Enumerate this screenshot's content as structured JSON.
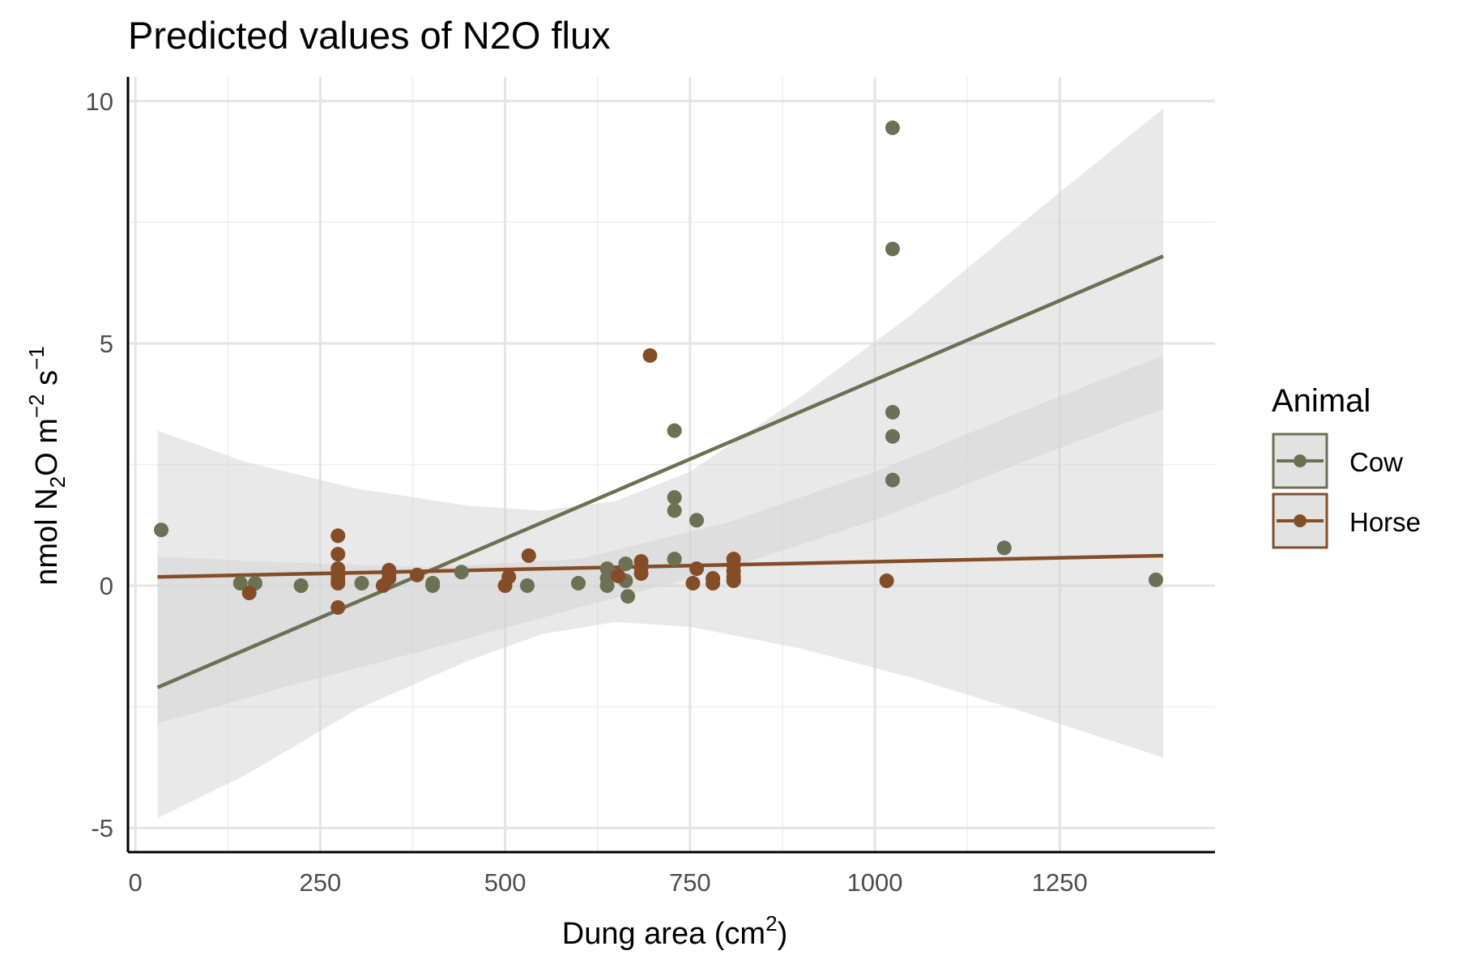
{
  "chart_data": {
    "type": "scatter",
    "title": "Predicted values of N2O flux",
    "xlabel": {
      "main": "Dung area (cm",
      "sup": "2",
      "close": ")"
    },
    "ylabel": {
      "a": "nmol N",
      "sub": "2",
      "b": "O m",
      "sup1": "−2",
      "c": " s",
      "sup2": "−1"
    },
    "xlim": [
      -10,
      1460
    ],
    "ylim": [
      -5.5,
      10.5
    ],
    "x_ticks": [
      0,
      250,
      500,
      750,
      1000,
      1250
    ],
    "x_tick_labels": [
      "0",
      "250",
      "500",
      "750",
      "1000",
      "1250"
    ],
    "y_ticks": [
      -5,
      0,
      5,
      10
    ],
    "y_tick_labels": [
      "-5",
      "0",
      "5",
      "10"
    ],
    "grid": true,
    "legend": {
      "title": "Animal",
      "position": "right"
    },
    "colors": {
      "cow": "#6b7152",
      "horse": "#844d28",
      "ribbon": "#d3d3d3"
    },
    "series": [
      {
        "name": "Cow",
        "color": "#6b7152",
        "points": [
          [
            35,
            1.15
          ],
          [
            142,
            0.05
          ],
          [
            162,
            0.05
          ],
          [
            224,
            0.0
          ],
          [
            306,
            0.05
          ],
          [
            402,
            0.05
          ],
          [
            402,
            0.0
          ],
          [
            441,
            0.28
          ],
          [
            530,
            0.0
          ],
          [
            599,
            0.05
          ],
          [
            638,
            0.35
          ],
          [
            638,
            0.15
          ],
          [
            638,
            0.0
          ],
          [
            663,
            0.45
          ],
          [
            663,
            0.1
          ],
          [
            666,
            -0.22
          ],
          [
            729,
            3.2
          ],
          [
            729,
            1.82
          ],
          [
            729,
            1.55
          ],
          [
            729,
            0.55
          ],
          [
            759,
            1.35
          ],
          [
            1024,
            9.45
          ],
          [
            1024,
            6.95
          ],
          [
            1024,
            3.58
          ],
          [
            1024,
            3.08
          ],
          [
            1024,
            2.18
          ],
          [
            1175,
            0.78
          ],
          [
            1380,
            0.12
          ]
        ],
        "fit": {
          "x": [
            30,
            1390
          ],
          "y": [
            -2.1,
            6.8
          ]
        },
        "ci_upper": [
          [
            30,
            3.2
          ],
          [
            150,
            2.55
          ],
          [
            300,
            2.0
          ],
          [
            450,
            1.65
          ],
          [
            550,
            1.55
          ],
          [
            650,
            1.75
          ],
          [
            750,
            2.35
          ],
          [
            900,
            3.9
          ],
          [
            1050,
            5.6
          ],
          [
            1200,
            7.5
          ],
          [
            1390,
            9.85
          ]
        ],
        "ci_lower": [
          [
            30,
            -4.8
          ],
          [
            150,
            -3.9
          ],
          [
            300,
            -2.55
          ],
          [
            450,
            -1.55
          ],
          [
            550,
            -1.0
          ],
          [
            650,
            -0.75
          ],
          [
            750,
            -0.85
          ],
          [
            900,
            -1.3
          ],
          [
            1050,
            -1.9
          ],
          [
            1200,
            -2.6
          ],
          [
            1390,
            -3.55
          ]
        ]
      },
      {
        "name": "Horse",
        "color": "#844d28",
        "points": [
          [
            154,
            -0.15
          ],
          [
            274,
            1.03
          ],
          [
            274,
            0.65
          ],
          [
            274,
            0.35
          ],
          [
            274,
            0.22
          ],
          [
            274,
            0.12
          ],
          [
            274,
            0.05
          ],
          [
            274,
            -0.45
          ],
          [
            335,
            0.0
          ],
          [
            343,
            0.32
          ],
          [
            343,
            0.25
          ],
          [
            343,
            0.15
          ],
          [
            381,
            0.22
          ],
          [
            500,
            0.0
          ],
          [
            505,
            0.18
          ],
          [
            532,
            0.62
          ],
          [
            653,
            0.2
          ],
          [
            684,
            0.5
          ],
          [
            684,
            0.38
          ],
          [
            684,
            0.25
          ],
          [
            696,
            4.75
          ],
          [
            754,
            0.05
          ],
          [
            759,
            0.35
          ],
          [
            781,
            0.15
          ],
          [
            781,
            0.05
          ],
          [
            809,
            0.55
          ],
          [
            809,
            0.42
          ],
          [
            809,
            0.3
          ],
          [
            809,
            0.18
          ],
          [
            809,
            0.1
          ],
          [
            1016,
            0.1
          ]
        ],
        "fit": {
          "x": [
            30,
            1390
          ],
          "y": [
            0.18,
            0.62
          ]
        },
        "ci_upper": [
          [
            30,
            0.6
          ],
          [
            200,
            0.48
          ],
          [
            400,
            0.38
          ],
          [
            600,
            0.55
          ],
          [
            800,
            1.3
          ],
          [
            1000,
            2.35
          ],
          [
            1200,
            3.6
          ],
          [
            1390,
            4.75
          ]
        ],
        "ci_lower": [
          [
            30,
            -2.85
          ],
          [
            200,
            -2.1
          ],
          [
            400,
            -1.3
          ],
          [
            600,
            -0.45
          ],
          [
            800,
            0.35
          ],
          [
            1000,
            1.35
          ],
          [
            1200,
            2.55
          ],
          [
            1390,
            3.65
          ]
        ]
      }
    ]
  }
}
